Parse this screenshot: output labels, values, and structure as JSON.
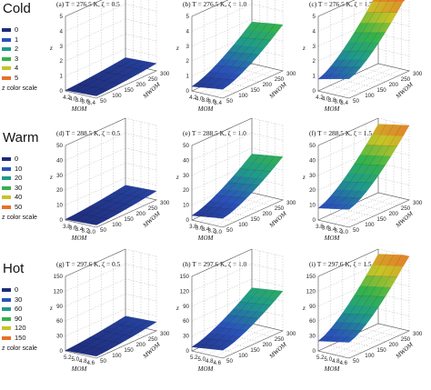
{
  "rows": [
    {
      "title": "Cold",
      "legend": [
        {
          "label": "0",
          "color": "#1f2c7a"
        },
        {
          "label": "1",
          "color": "#2a52b8"
        },
        {
          "label": "2",
          "color": "#1f9a8a"
        },
        {
          "label": "3",
          "color": "#35b24a"
        },
        {
          "label": "4",
          "color": "#c7c426"
        },
        {
          "label": "5",
          "color": "#e8702a"
        }
      ],
      "legend_caption": "z color scale",
      "panels": [
        {
          "title": "(a) T = 276.5 K, ζ = 0.5",
          "xlabel": "MOM",
          "ylabel": "MWOM",
          "zlabel": "z",
          "xticks": [
            "4.2",
            "4.0",
            "3.8",
            "3.6",
            "3.4"
          ],
          "yticks": [
            "50",
            "100",
            "150",
            "200",
            "250",
            "300"
          ],
          "zticks": [
            "0",
            "1",
            "2",
            "3",
            "4",
            "5"
          ],
          "zmax": 5,
          "zmin": 0,
          "zlow": 0.05,
          "zhigh": 0.4,
          "ztilt": 0.1
        },
        {
          "title": "(b) T = 276.5 K, ζ = 1.0",
          "xlabel": "MOM",
          "ylabel": "MWOM",
          "zlabel": "z",
          "xticks": [
            "4.2",
            "4.0",
            "3.8",
            "3.6",
            "3.4"
          ],
          "yticks": [
            "50",
            "100",
            "150",
            "200",
            "250",
            "300"
          ],
          "zticks": [
            "0",
            "1",
            "2",
            "3",
            "4",
            "5"
          ],
          "zmax": 5,
          "zmin": 0,
          "zlow": 0.3,
          "zhigh": 2.8,
          "ztilt": 0.3
        },
        {
          "title": "(c) T = 276.5 K, ζ = 1.5",
          "xlabel": "MOM",
          "ylabel": "MWOM",
          "zlabel": "z",
          "xticks": [
            "4.2",
            "4.0",
            "3.8",
            "3.6",
            "3.4"
          ],
          "yticks": [
            "50",
            "100",
            "150",
            "200",
            "250",
            "300"
          ],
          "zticks": [
            "0",
            "1",
            "2",
            "3",
            "4",
            "5"
          ],
          "zmax": 5,
          "zmin": 0,
          "zlow": 0.8,
          "zhigh": 4.9,
          "ztilt": 0.5
        }
      ]
    },
    {
      "title": "Warm",
      "legend": [
        {
          "label": "0",
          "color": "#1f2c7a"
        },
        {
          "label": "10",
          "color": "#2a52b8"
        },
        {
          "label": "20",
          "color": "#1f9a8a"
        },
        {
          "label": "30",
          "color": "#35b24a"
        },
        {
          "label": "40",
          "color": "#c7c426"
        },
        {
          "label": "50",
          "color": "#e8702a"
        }
      ],
      "legend_caption": "z color scale",
      "panels": [
        {
          "title": "(d) T = 288.5 K, ζ = 0.5",
          "xlabel": "MOM",
          "ylabel": "MWOM",
          "zlabel": "z",
          "xticks": [
            "3.8",
            "3.6",
            "3.4",
            "3.2",
            "3.0"
          ],
          "yticks": [
            "50",
            "100",
            "150",
            "200",
            "250",
            "300"
          ],
          "zticks": [
            "0",
            "10",
            "20",
            "30",
            "40",
            "50"
          ],
          "zmax": 50,
          "zmin": 0,
          "zlow": 0.5,
          "zhigh": 5,
          "ztilt": 1
        },
        {
          "title": "(e) T = 288.5 K, ζ = 1.0",
          "xlabel": "MOM",
          "ylabel": "MWOM",
          "zlabel": "z",
          "xticks": [
            "3.8",
            "3.6",
            "3.4",
            "3.2",
            "3.0"
          ],
          "yticks": [
            "50",
            "100",
            "150",
            "200",
            "250",
            "300"
          ],
          "zticks": [
            "0",
            "10",
            "20",
            "30",
            "40",
            "50"
          ],
          "zmax": 50,
          "zmin": 0,
          "zlow": 3,
          "zhigh": 26,
          "ztilt": 3
        },
        {
          "title": "(f) T = 288.5 K, ζ = 1.5",
          "xlabel": "MOM",
          "ylabel": "MWOM",
          "zlabel": "z",
          "xticks": [
            "3.8",
            "3.6",
            "3.4",
            "3.2",
            "3.0"
          ],
          "yticks": [
            "50",
            "100",
            "150",
            "200",
            "250",
            "300"
          ],
          "zticks": [
            "0",
            "10",
            "20",
            "30",
            "40",
            "50"
          ],
          "zmax": 50,
          "zmin": 0,
          "zlow": 8,
          "zhigh": 46,
          "ztilt": 4
        }
      ]
    },
    {
      "title": "Hot",
      "legend": [
        {
          "label": "0",
          "color": "#1f2c7a"
        },
        {
          "label": "30",
          "color": "#2a52b8"
        },
        {
          "label": "60",
          "color": "#1f9a8a"
        },
        {
          "label": "90",
          "color": "#35b24a"
        },
        {
          "label": "120",
          "color": "#c7c426"
        },
        {
          "label": "150",
          "color": "#e8702a"
        }
      ],
      "legend_caption": "z color scale",
      "panels": [
        {
          "title": "(g) T = 297.6 K, ζ = 0.5",
          "xlabel": "MOM",
          "ylabel": "MWOM",
          "zlabel": "z",
          "xticks": [
            "5.2",
            "5.0",
            "4.8",
            "4.6"
          ],
          "yticks": [
            "50",
            "100",
            "150",
            "200",
            "250",
            "300"
          ],
          "zticks": [
            "0",
            "30",
            "60",
            "90",
            "120",
            "150"
          ],
          "zmax": 150,
          "zmin": 0,
          "zlow": 1,
          "zhigh": 15,
          "ztilt": 3
        },
        {
          "title": "(h) T = 297.6 K, ζ = 1.0",
          "xlabel": "MOM",
          "ylabel": "MWOM",
          "zlabel": "z",
          "xticks": [
            "5.2",
            "5.0",
            "4.8",
            "4.6"
          ],
          "yticks": [
            "50",
            "100",
            "150",
            "200",
            "250",
            "300"
          ],
          "zticks": [
            "0",
            "30",
            "60",
            "90",
            "120",
            "150"
          ],
          "zmax": 150,
          "zmin": 0,
          "zlow": 8,
          "zhigh": 72,
          "ztilt": 8
        },
        {
          "title": "(i) T = 297.6 K, ζ = 1.5",
          "xlabel": "MOM",
          "ylabel": "MWOM",
          "zlabel": "z",
          "xticks": [
            "5.2",
            "5.0",
            "4.8",
            "4.6"
          ],
          "yticks": [
            "50",
            "100",
            "150",
            "200",
            "250",
            "300"
          ],
          "zticks": [
            "0",
            "30",
            "60",
            "90",
            "120",
            "150"
          ],
          "zmax": 150,
          "zmin": 0,
          "zlow": 20,
          "zhigh": 140,
          "ztilt": 12
        }
      ]
    }
  ],
  "chart_data": {
    "type": "surface",
    "rows": [
      "Cold",
      "Warm",
      "Hot"
    ],
    "columns": [
      "ζ = 0.5",
      "ζ = 1.0",
      "ζ = 1.5"
    ],
    "zlabel": "z",
    "xlabel": "MOM",
    "ylabel": "MWOM",
    "colormap": [
      "#1f2c7a",
      "#2a52b8",
      "#1f9a8a",
      "#35b24a",
      "#c7c426",
      "#e8702a"
    ]
  }
}
